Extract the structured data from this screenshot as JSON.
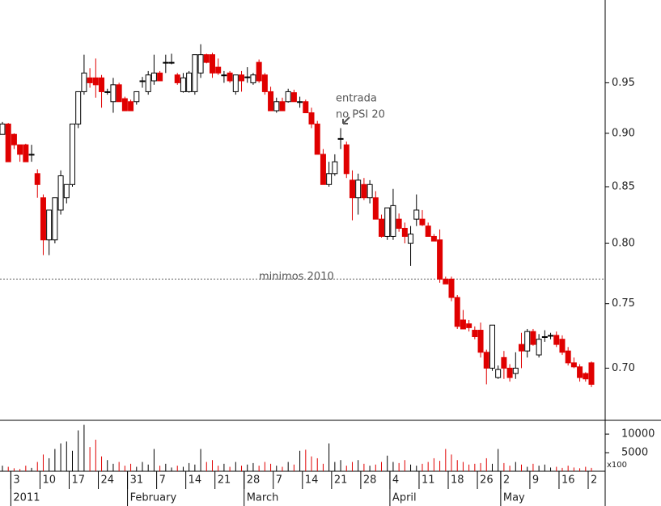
{
  "chart_data": {
    "type": "candlestick",
    "log_scale": true,
    "ylim": [
      0.662,
      1.038
    ],
    "yticks": [
      {
        "value": 0.7,
        "label": "0.70"
      },
      0.75,
      {
        "value": 0.8,
        "label": "0.80"
      },
      0.85,
      {
        "value": 0.9,
        "label": "0.90"
      },
      0.95
    ],
    "up_color": "#ffffff",
    "down_color": "#e00000",
    "categories": [
      null,
      null,
      "3",
      null,
      null,
      null,
      null,
      "10",
      null,
      null,
      null,
      null,
      "17",
      null,
      null,
      null,
      null,
      "24",
      null,
      null,
      null,
      null,
      "31",
      null,
      null,
      null,
      null,
      "7",
      null,
      null,
      null,
      null,
      "14",
      null,
      null,
      null,
      null,
      "21",
      null,
      null,
      null,
      null,
      "28",
      null,
      null,
      null,
      null,
      "7",
      null,
      null,
      null,
      null,
      "14",
      null,
      null,
      null,
      null,
      "21",
      null,
      null,
      null,
      null,
      "28",
      null,
      null,
      null,
      null,
      "4",
      null,
      null,
      null,
      null,
      "11",
      null,
      null,
      null,
      null,
      "18",
      null,
      null,
      null,
      null,
      "26",
      null,
      null,
      null,
      "2",
      null,
      null,
      null,
      null,
      "9",
      null,
      null,
      null,
      null,
      "16",
      null,
      null,
      null,
      null,
      "2"
    ],
    "periods": [
      null,
      null,
      "2011",
      null,
      null,
      null,
      null,
      null,
      null,
      null,
      null,
      null,
      null,
      null,
      null,
      null,
      null,
      null,
      null,
      null,
      null,
      null,
      "February",
      null,
      null,
      null,
      null,
      null,
      null,
      null,
      null,
      null,
      null,
      null,
      null,
      null,
      null,
      null,
      null,
      null,
      null,
      null,
      "March",
      null,
      null,
      null,
      null,
      null,
      null,
      null,
      null,
      null,
      null,
      null,
      null,
      null,
      null,
      null,
      null,
      null,
      null,
      null,
      null,
      null,
      null,
      null,
      null,
      "April",
      null,
      null,
      null,
      null,
      null,
      null,
      null,
      null,
      null,
      null,
      null,
      null,
      null,
      null,
      null,
      null,
      null,
      null,
      "May",
      null,
      null,
      null,
      null,
      null,
      null,
      null,
      null,
      null,
      null,
      null,
      null,
      null,
      null,
      null
    ],
    "open": [
      0.899,
      0.909,
      0.899,
      0.889,
      0.889,
      0.88,
      0.862,
      0.84,
      0.803,
      0.803,
      0.829,
      0.84,
      0.852,
      0.909,
      0.941,
      0.955,
      0.955,
      0.955,
      0.941,
      0.931,
      0.948,
      0.934,
      0.931,
      0.931,
      0.952,
      0.941,
      0.952,
      0.96,
      0.971,
      0.971,
      0.958,
      0.941,
      0.941,
      0.941,
      0.96,
      0.979,
      0.979,
      0.966,
      0.958,
      0.96,
      0.941,
      0.958,
      0.956,
      0.95,
      0.971,
      0.958,
      0.941,
      0.922,
      0.931,
      0.931,
      0.94,
      0.931,
      0.931,
      0.92,
      0.909,
      0.88,
      0.852,
      0.862,
      0.895,
      0.889,
      0.856,
      0.84,
      0.852,
      0.84,
      0.84,
      0.821,
      0.806,
      0.806,
      0.821,
      0.813,
      0.8,
      0.821,
      0.821,
      0.815,
      0.806,
      0.803,
      0.77,
      0.77,
      0.755,
      0.737,
      0.734,
      0.729,
      0.729,
      0.712,
      0.7,
      0.693,
      0.708,
      0.7,
      0.696,
      0.718,
      0.713,
      0.728,
      0.71,
      0.724,
      0.725,
      0.725,
      0.722,
      0.713,
      0.704,
      0.701,
      0.696,
      0.704
    ],
    "high": [
      0.911,
      0.91,
      0.9,
      0.889,
      0.89,
      0.889,
      0.866,
      0.843,
      0.829,
      0.84,
      0.865,
      0.852,
      0.909,
      0.941,
      0.979,
      0.965,
      0.975,
      0.958,
      0.944,
      0.955,
      0.95,
      0.936,
      0.933,
      0.941,
      0.956,
      0.962,
      0.979,
      0.962,
      0.979,
      0.98,
      0.96,
      0.96,
      0.962,
      0.979,
      0.99,
      0.98,
      0.981,
      0.975,
      0.962,
      0.962,
      0.958,
      0.962,
      0.966,
      0.96,
      0.974,
      0.96,
      0.946,
      0.935,
      0.935,
      0.944,
      0.943,
      0.936,
      0.933,
      0.925,
      0.912,
      0.885,
      0.873,
      0.88,
      0.905,
      0.892,
      0.865,
      0.862,
      0.858,
      0.856,
      0.846,
      0.825,
      0.83,
      0.848,
      0.826,
      0.818,
      0.815,
      0.843,
      0.829,
      0.818,
      0.808,
      0.812,
      0.772,
      0.772,
      0.757,
      0.745,
      0.737,
      0.732,
      0.735,
      0.714,
      0.733,
      0.702,
      0.713,
      0.703,
      0.712,
      0.727,
      0.73,
      0.73,
      0.726,
      0.729,
      0.727,
      0.728,
      0.725,
      0.716,
      0.708,
      0.703,
      0.697,
      0.705
    ],
    "low": [
      0.899,
      0.873,
      0.885,
      0.873,
      0.873,
      0.873,
      0.84,
      0.79,
      0.79,
      0.8,
      0.825,
      0.835,
      0.85,
      0.905,
      0.938,
      0.945,
      0.935,
      0.925,
      0.938,
      0.92,
      0.931,
      0.922,
      0.922,
      0.928,
      0.945,
      0.938,
      0.948,
      0.952,
      0.96,
      0.969,
      0.948,
      0.94,
      0.94,
      0.938,
      0.955,
      0.97,
      0.955,
      0.958,
      0.95,
      0.95,
      0.938,
      0.941,
      0.95,
      0.948,
      0.95,
      0.938,
      0.922,
      0.92,
      0.922,
      0.93,
      0.931,
      0.925,
      0.92,
      0.905,
      0.88,
      0.852,
      0.85,
      0.86,
      0.885,
      0.858,
      0.82,
      0.825,
      0.838,
      0.835,
      0.821,
      0.805,
      0.803,
      0.803,
      0.81,
      0.8,
      0.781,
      0.815,
      0.815,
      0.806,
      0.802,
      0.767,
      0.766,
      0.752,
      0.73,
      0.73,
      0.728,
      0.722,
      0.708,
      0.688,
      0.698,
      0.692,
      0.692,
      0.69,
      0.692,
      0.7,
      0.708,
      0.717,
      0.708,
      0.72,
      0.722,
      0.716,
      0.71,
      0.702,
      0.7,
      0.69,
      0.69,
      0.686
    ],
    "close": [
      0.909,
      0.873,
      0.889,
      0.88,
      0.873,
      0.88,
      0.852,
      0.803,
      0.829,
      0.84,
      0.86,
      0.852,
      0.909,
      0.941,
      0.96,
      0.95,
      0.948,
      0.941,
      0.941,
      0.948,
      0.931,
      0.922,
      0.922,
      0.941,
      0.952,
      0.958,
      0.96,
      0.952,
      0.971,
      0.971,
      0.95,
      0.955,
      0.96,
      0.979,
      0.979,
      0.971,
      0.96,
      0.96,
      0.958,
      0.952,
      0.958,
      0.952,
      0.956,
      0.958,
      0.952,
      0.941,
      0.922,
      0.931,
      0.922,
      0.941,
      0.931,
      0.931,
      0.92,
      0.909,
      0.88,
      0.852,
      0.862,
      0.873,
      0.895,
      0.862,
      0.84,
      0.856,
      0.84,
      0.852,
      0.821,
      0.806,
      0.831,
      0.833,
      0.813,
      0.806,
      0.808,
      0.829,
      0.816,
      0.806,
      0.802,
      0.77,
      0.766,
      0.755,
      0.732,
      0.73,
      0.731,
      0.724,
      0.712,
      0.7,
      0.733,
      0.699,
      0.7,
      0.693,
      0.7,
      0.713,
      0.728,
      0.718,
      0.722,
      0.724,
      0.725,
      0.718,
      0.712,
      0.704,
      0.701,
      0.693,
      0.692,
      0.688
    ],
    "hline": {
      "value": 0.77,
      "label": "minimos 2010"
    },
    "annotation": [
      "entrada",
      "no PSI 20"
    ],
    "volume": {
      "values": [
        1500,
        1200,
        800,
        600,
        1500,
        900,
        2500,
        4500,
        3500,
        6000,
        7500,
        8000,
        5500,
        11000,
        12500,
        6500,
        8500,
        4000,
        3000,
        2000,
        2500,
        1500,
        2000,
        1200,
        2500,
        1800,
        6000,
        1500,
        2000,
        1000,
        1500,
        1200,
        2200,
        1800,
        6000,
        2500,
        3000,
        1500,
        2000,
        1200,
        2500,
        1500,
        1800,
        2200,
        1500,
        2500,
        2000,
        1500,
        1200,
        2500,
        1800,
        5500,
        5800,
        4000,
        3500,
        2000,
        7500,
        2500,
        3000,
        1500,
        2500,
        3000,
        2000,
        1500,
        1800,
        2500,
        4200,
        2500,
        2200,
        3000,
        1800,
        1500,
        2000,
        2500,
        3500,
        2800,
        6000,
        4500,
        3000,
        2500,
        1800,
        2000,
        2200,
        3500,
        2000,
        6000,
        2200,
        1500,
        2500,
        1800,
        1200,
        2000,
        1500,
        1800,
        1000,
        1200,
        900,
        1500,
        1000,
        800,
        1200,
        900
      ],
      "ylim": [
        0,
        13500
      ],
      "yticks": [
        5000,
        10000
      ],
      "unit_label": "x100"
    }
  }
}
